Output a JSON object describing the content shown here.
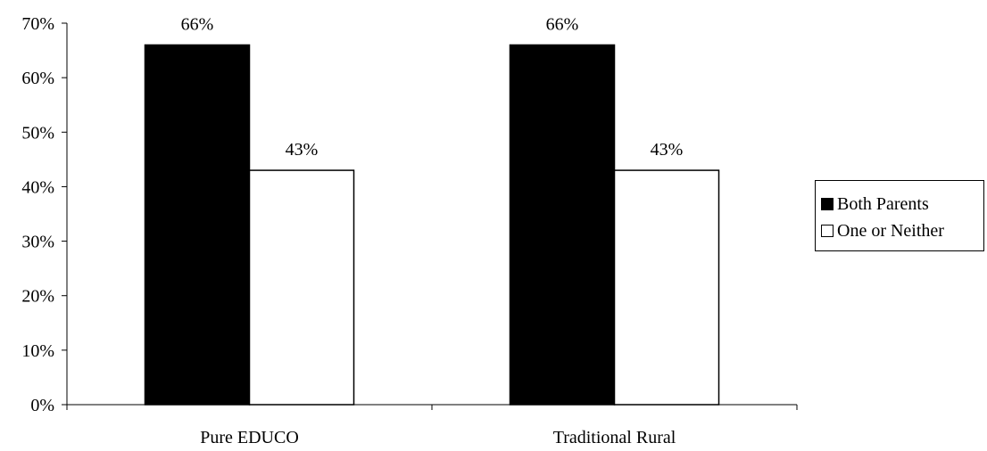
{
  "chart_data": {
    "type": "bar",
    "categories": [
      "Pure EDUCO",
      "Traditional Rural"
    ],
    "series": [
      {
        "name": "Both Parents",
        "values": [
          66,
          66
        ],
        "labels": [
          "66%",
          "66%"
        ],
        "color": "#000000"
      },
      {
        "name": "One or Neither",
        "values": [
          43,
          43
        ],
        "labels": [
          "43%",
          "43%"
        ],
        "color": "#ffffff"
      }
    ],
    "ylim": [
      0,
      70
    ],
    "yticks": [
      "0%",
      "10%",
      "20%",
      "30%",
      "40%",
      "50%",
      "60%",
      "70%"
    ],
    "title": "",
    "xlabel": "",
    "ylabel": "",
    "grid": false,
    "legend_position": "right"
  }
}
